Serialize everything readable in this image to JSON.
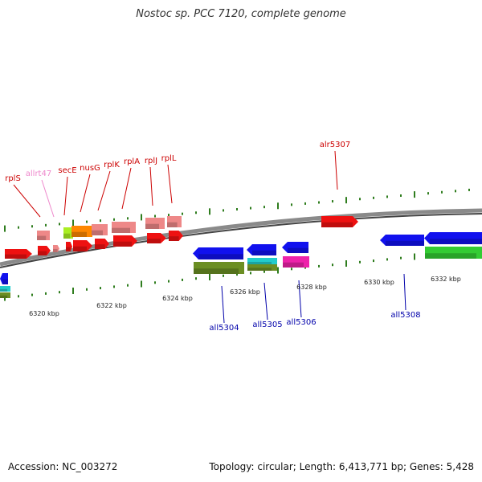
{
  "header": {
    "title": "Nostoc sp. PCC 7120, complete genome"
  },
  "footer": {
    "accession": "Accession: NC_003272",
    "summary": "Topology: circular; Length: 6,413,771 bp; Genes: 5,428"
  },
  "colors": {
    "backbone": "#8a8a8a",
    "tick": "#2f7d1e",
    "label_forward": "#cc0000",
    "label_forward_light": "#ee88cc",
    "label_reverse": "#0000aa",
    "gene_red": "#ee1111",
    "gene_pink": "#ee8888",
    "gene_blue": "#1111ee",
    "gene_olive": "#6b8e23",
    "gene_cyan": "#22cccc",
    "gene_magenta": "#ee22aa",
    "gene_green": "#33cc33",
    "gene_orange": "#ff8800",
    "gene_lime": "#aaee22"
  },
  "ruler": {
    "ticks": [
      "6320 kbp",
      "6322 kbp",
      "6324 kbp",
      "6326 kbp",
      "6328 kbp",
      "6330 kbp",
      "6332 kbp"
    ]
  },
  "gene_labels": [
    {
      "name": "rplS",
      "color": "label_forward"
    },
    {
      "name": "allrt47",
      "color": "label_forward_light"
    },
    {
      "name": "secE",
      "color": "label_forward"
    },
    {
      "name": "nusG",
      "color": "label_forward"
    },
    {
      "name": "rplK",
      "color": "label_forward"
    },
    {
      "name": "rplA",
      "color": "label_forward"
    },
    {
      "name": "rplJ",
      "color": "label_forward"
    },
    {
      "name": "rplL",
      "color": "label_forward"
    },
    {
      "name": "alr5307",
      "color": "label_forward"
    },
    {
      "name": "all5304",
      "color": "label_reverse"
    },
    {
      "name": "all5305",
      "color": "label_reverse"
    },
    {
      "name": "all5306",
      "color": "label_reverse"
    },
    {
      "name": "all5308",
      "color": "label_reverse"
    }
  ]
}
